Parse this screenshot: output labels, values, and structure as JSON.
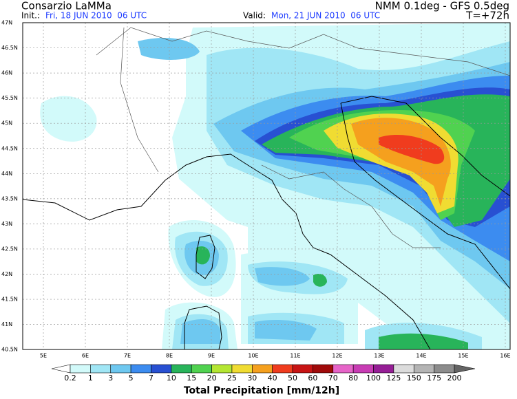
{
  "header": {
    "title_left": "Consarzio LaMMa",
    "title_right": "NMM 0.1deg - GFS 0.5deg",
    "init_label": "Init.:",
    "init_value": "Fri, 18 JUN 2010  06 UTC",
    "valid_label": "Valid:",
    "valid_value": "Mon, 21 JUN 2010  06 UTC",
    "forecast": "T=+72h"
  },
  "map": {
    "lon_labels": [
      "5E",
      "6E",
      "7E",
      "8E",
      "9E",
      "10E",
      "11E",
      "12E",
      "13E",
      "14E",
      "15E",
      "16E"
    ],
    "lat_labels": [
      "47N",
      "46.5N",
      "46N",
      "45.5N",
      "45N",
      "44.5N",
      "44N",
      "43.5N",
      "43N",
      "42.5N",
      "42N",
      "41.5N",
      "41N",
      "40.5N"
    ]
  },
  "colorbar": {
    "labels": [
      "0.2",
      "1",
      "3",
      "5",
      "7",
      "10",
      "15",
      "20",
      "25",
      "30",
      "40",
      "50",
      "60",
      "70",
      "80",
      "100",
      "125",
      "150",
      "175",
      "200"
    ],
    "colors": [
      "#ffffff",
      "#d2fafa",
      "#a0e6f5",
      "#6ec8f0",
      "#3c8cf0",
      "#2850d2",
      "#28b45a",
      "#50d250",
      "#b4e632",
      "#f0dc32",
      "#f5a01e",
      "#f03c1e",
      "#c81414",
      "#a00a0a",
      "#e664c8",
      "#c83cb4",
      "#961e96",
      "#dcdcdc",
      "#b4b4b4",
      "#8c8c8c",
      "#646464"
    ],
    "title": "Total Precipitation [mm/12h]"
  }
}
